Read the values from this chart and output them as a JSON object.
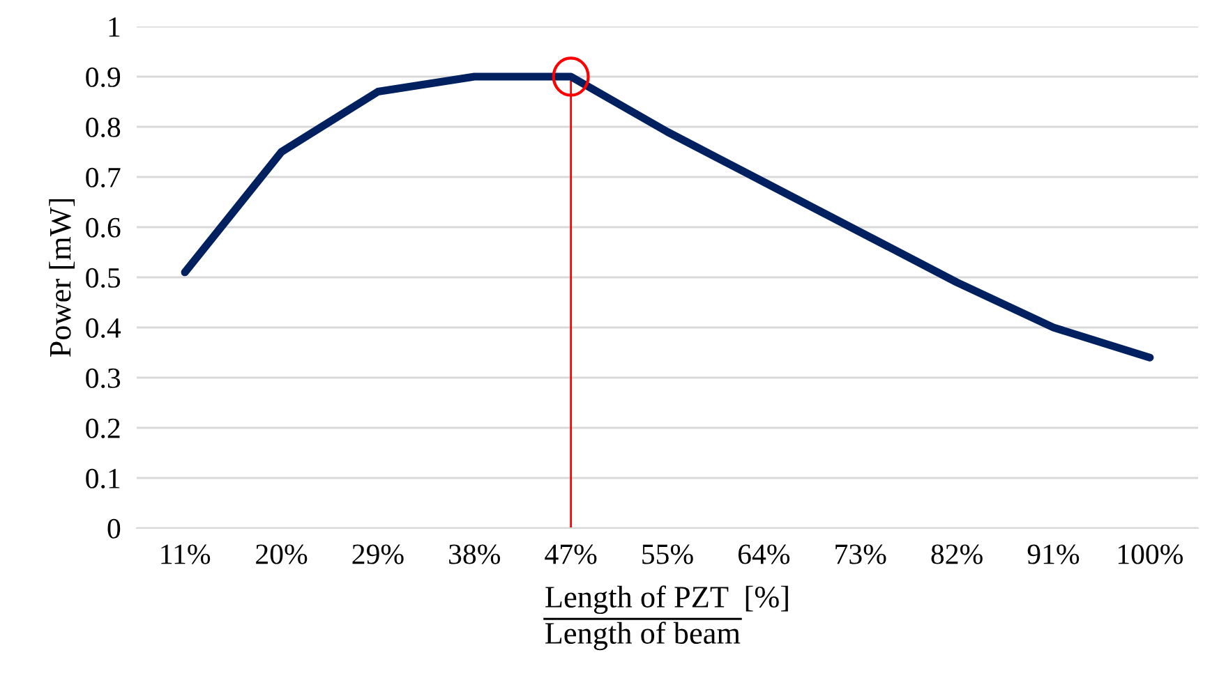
{
  "chart_data": {
    "type": "line",
    "ylabel": "Power [mW]",
    "xlabel": "Length of PZT  [%]",
    "annotations": [
      "Length of beam"
    ],
    "categories": [
      "11%",
      "20%",
      "29%",
      "38%",
      "47%",
      "55%",
      "64%",
      "73%",
      "82%",
      "91%",
      "100%"
    ],
    "series": [
      {
        "color": "#002060",
        "values": [
          0.51,
          0.75,
          0.87,
          0.9,
          0.9,
          0.79,
          0.69,
          0.59,
          0.49,
          0.4,
          0.34
        ]
      }
    ],
    "ylim": [
      0,
      1
    ],
    "yticks": [
      0,
      0.1,
      0.2,
      0.3,
      0.4,
      0.5,
      0.6,
      0.7,
      0.8,
      0.9,
      1
    ],
    "ref_lines": [
      {
        "axis": "x",
        "value": "47%",
        "label": null,
        "color": "#ff0000"
      }
    ],
    "grid": "y",
    "legend": false,
    "marker": "none",
    "line_style": "solid"
  }
}
